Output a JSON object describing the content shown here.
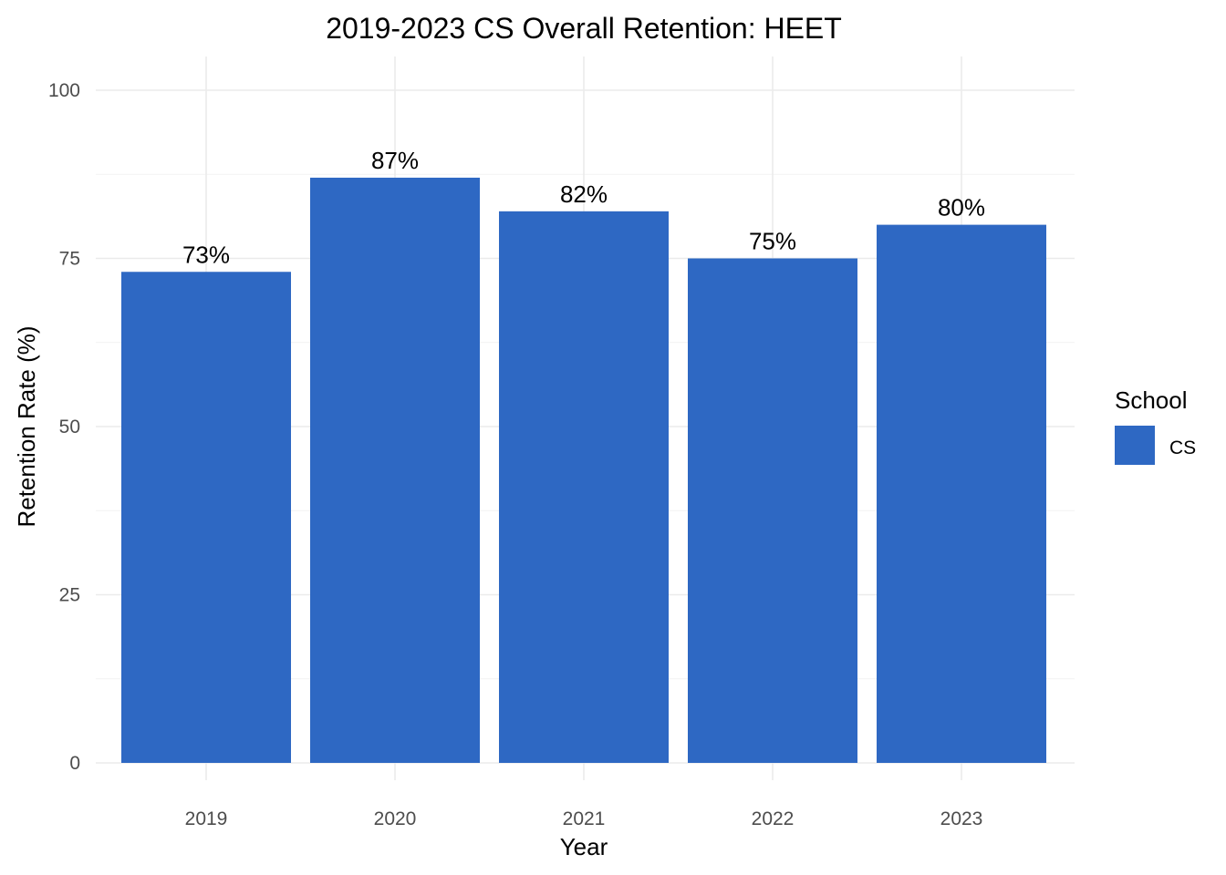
{
  "chart_data": {
    "type": "bar",
    "title": "2019-2023 CS Overall Retention: HEET",
    "xlabel": "Year",
    "ylabel": "Retention Rate (%)",
    "categories": [
      "2019",
      "2020",
      "2021",
      "2022",
      "2023"
    ],
    "series": [
      {
        "name": "CS",
        "values": [
          73,
          87,
          82,
          75,
          80
        ],
        "labels": [
          "73%",
          "87%",
          "82%",
          "75%",
          "80%"
        ],
        "color": "#2e68c3"
      }
    ],
    "ylim": [
      0,
      100
    ],
    "yticks": [
      0,
      25,
      50,
      75,
      100
    ],
    "grid": true,
    "legend": {
      "title": "School",
      "placement": "right",
      "entries": [
        "CS"
      ]
    }
  }
}
